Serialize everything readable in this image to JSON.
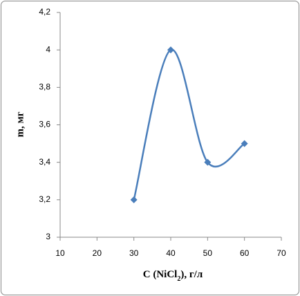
{
  "chart_data": {
    "type": "line",
    "smooth": true,
    "x": [
      30,
      40,
      50,
      60
    ],
    "series": [
      {
        "color": "#4a7ebb",
        "values": [
          3.2,
          4,
          3.4,
          3.5
        ]
      }
    ],
    "xlim": [
      10,
      70
    ],
    "xticks": [
      10,
      20,
      30,
      40,
      50,
      60,
      70
    ],
    "ylim": [
      3,
      4.2
    ],
    "yticks": [
      3,
      {
        "value": 3.2,
        "label": "3,2"
      },
      {
        "value": 3.4,
        "label": "3,4"
      },
      {
        "value": 3.6,
        "label": "3,6"
      },
      {
        "value": 3.8,
        "label": "3,8"
      },
      4,
      {
        "value": 4.2,
        "label": "4,2"
      }
    ],
    "xlabel": [
      "C (NiCl",
      "2",
      "), г/л"
    ],
    "ylabel": "m, мг",
    "grid": false
  }
}
